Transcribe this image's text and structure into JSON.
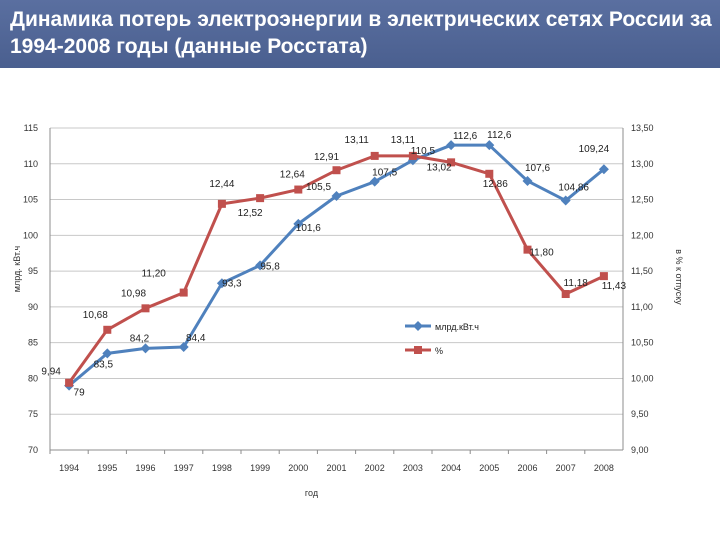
{
  "page": {
    "title": "Динамика потерь электроэнергии в электрических сетях России за 1994-2008 годы (данные Росстата)"
  },
  "chart_data": {
    "type": "line",
    "title": "Динамика потерь электроэнергии в электрических сетях России за 1994-2008 годы (данные Росстата)",
    "xlabel": "год",
    "ylabel_left": "млрд. кВт.ч",
    "ylabel_right": "в % к отпуску",
    "categories": [
      "1994",
      "1995",
      "1996",
      "1997",
      "1998",
      "1999",
      "2000",
      "2001",
      "2002",
      "2003",
      "2004",
      "2005",
      "2006",
      "2007",
      "2008"
    ],
    "ylim_left": [
      70,
      115
    ],
    "yticks_left": [
      "70",
      "75",
      "80",
      "85",
      "90",
      "95",
      "100",
      "105",
      "110",
      "115"
    ],
    "ylim_right": [
      9.0,
      13.5
    ],
    "yticks_right": [
      "9,00",
      "9,50",
      "10,00",
      "10,50",
      "11,00",
      "11,50",
      "12,00",
      "12,50",
      "13,00",
      "13,50"
    ],
    "grid": "horizontal",
    "legend_position": "right-middle",
    "series": [
      {
        "name": "млрд.кВт.ч",
        "axis": "left",
        "color": "#4f81bd",
        "marker": "diamond",
        "values": [
          79,
          83.5,
          84.2,
          84.4,
          93.3,
          95.8,
          101.6,
          105.5,
          107.5,
          110.5,
          112.6,
          112.6,
          107.6,
          104.86,
          109.24
        ],
        "labels": [
          "79",
          "83,5",
          "84,2",
          "84,4",
          "93,3",
          "95,8",
          "101,6",
          "105,5",
          "107,5",
          "110,5",
          "112,6",
          "112,6",
          "107,6",
          "104,86",
          "109,24"
        ]
      },
      {
        "name": "%",
        "axis": "right",
        "color": "#c0504d",
        "marker": "square",
        "values": [
          9.94,
          10.68,
          10.98,
          11.2,
          12.44,
          12.52,
          12.64,
          12.91,
          13.11,
          13.11,
          13.02,
          12.86,
          11.8,
          11.18,
          11.43
        ],
        "labels": [
          "9,94",
          "10,68",
          "10,98",
          "11,20",
          "12,44",
          "12,52",
          "12,64",
          "12,91",
          "13,11",
          "13,11",
          "13,02",
          "12,86",
          "11,80",
          "11,18",
          "11,43"
        ]
      }
    ]
  }
}
